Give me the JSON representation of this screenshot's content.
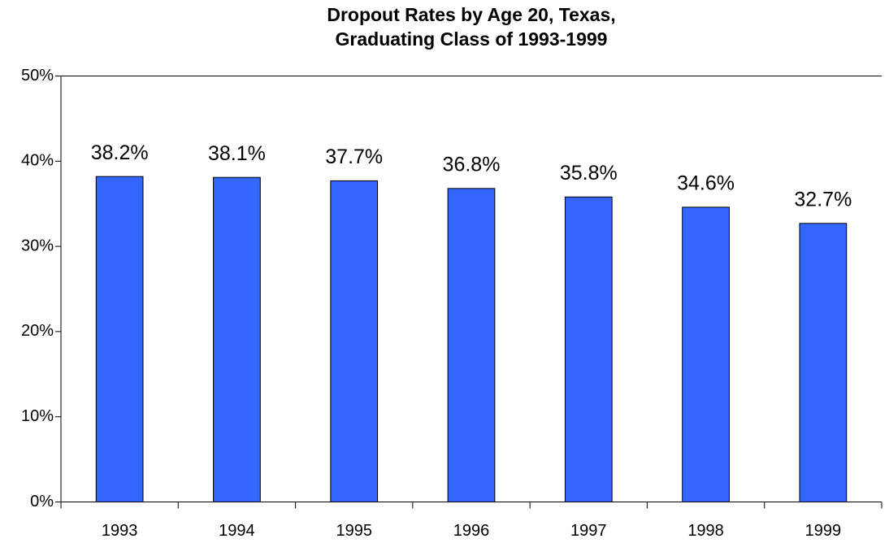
{
  "chart_data": {
    "type": "bar",
    "title": [
      "Dropout Rates by Age 20, Texas,",
      "Graduating Class of 1993-1999"
    ],
    "categories": [
      "1993",
      "1994",
      "1995",
      "1996",
      "1997",
      "1998",
      "1999"
    ],
    "values": [
      38.2,
      38.1,
      37.7,
      36.8,
      35.8,
      34.6,
      32.7
    ],
    "value_labels": [
      "38.2%",
      "38.1%",
      "37.7%",
      "36.8%",
      "35.8%",
      "34.6%",
      "32.7%"
    ],
    "color": "#3366ff",
    "ylim": [
      0,
      50
    ],
    "yticks": [
      {
        "value": 0,
        "label": "0%"
      },
      {
        "value": 10,
        "label": "10%"
      },
      {
        "value": 20,
        "label": "20%"
      },
      {
        "value": 30,
        "label": "30%"
      },
      {
        "value": 40,
        "label": "40%"
      },
      {
        "value": 50,
        "label": "50%"
      }
    ],
    "grid": false
  }
}
